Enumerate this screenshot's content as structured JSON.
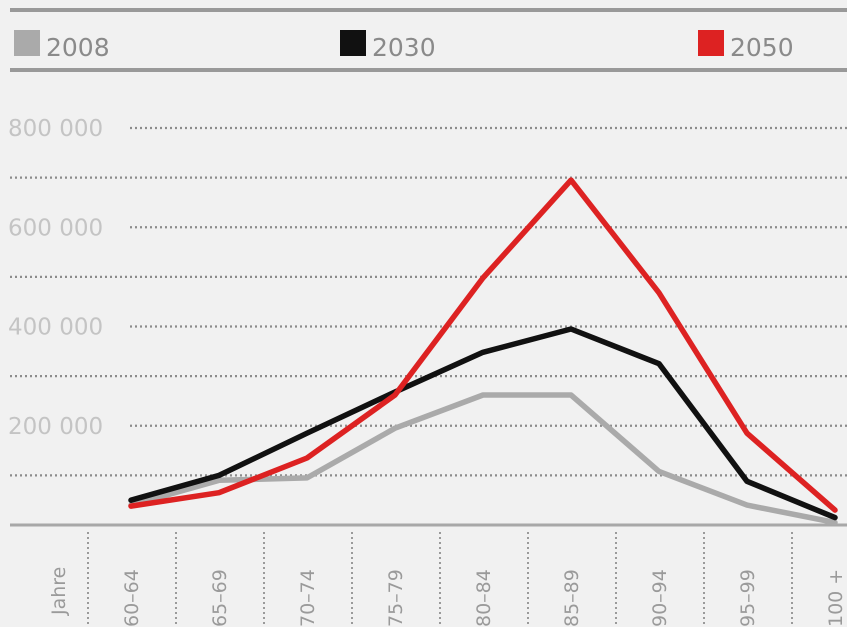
{
  "chart_data": {
    "type": "line",
    "unit_label": "Jahre",
    "categories": [
      "60–64",
      "65–69",
      "70–74",
      "75–79",
      "80–84",
      "85–89",
      "90–94",
      "95–99",
      "100 +"
    ],
    "series": [
      {
        "name": "2008",
        "color": "#aaaaaa",
        "values": [
          40000,
          90000,
          95000,
          195000,
          262000,
          262000,
          108000,
          40000,
          5000
        ]
      },
      {
        "name": "2030",
        "color": "#111111",
        "values": [
          50000,
          100000,
          185000,
          268000,
          348000,
          395000,
          325000,
          88000,
          15000
        ]
      },
      {
        "name": "2050",
        "color": "#dd2222",
        "values": [
          38000,
          65000,
          135000,
          262000,
          498000,
          695000,
          468000,
          185000,
          30000
        ]
      }
    ],
    "y_ticks": [
      {
        "value": 200000,
        "label": "200 000"
      },
      {
        "value": 400000,
        "label": "400 000"
      },
      {
        "value": 600000,
        "label": "600 000"
      },
      {
        "value": 800000,
        "label": "800 000"
      }
    ],
    "ylim": [
      0,
      800000
    ],
    "grid": true,
    "legend_position": "top"
  }
}
